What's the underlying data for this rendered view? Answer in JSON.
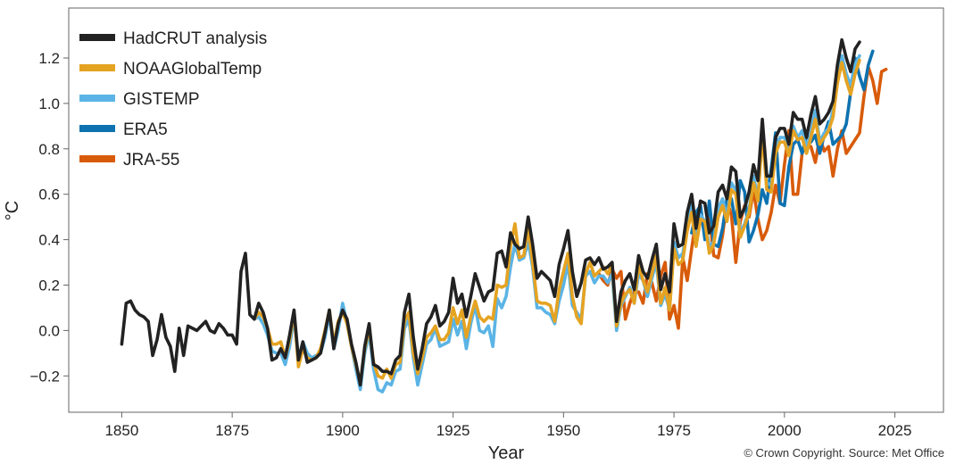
{
  "chart_data": {
    "type": "line",
    "xlabel": "Year",
    "ylabel": "°C",
    "xlim": [
      1838,
      2036
    ],
    "ylim": [
      -0.36,
      1.42
    ],
    "x_ticks": [
      1850,
      1875,
      1900,
      1925,
      1950,
      1975,
      2000,
      2025
    ],
    "y_ticks": [
      -0.2,
      0.0,
      0.2,
      0.4,
      0.6,
      0.8,
      1.0,
      1.2
    ],
    "y_tick_labels": [
      "−0.2",
      "0.0",
      "0.2",
      "0.4",
      "0.6",
      "0.8",
      "1.0",
      "1.2"
    ],
    "grid": false,
    "legend_position": "top-left",
    "credit": "© Crown Copyright. Source: Met Office",
    "draw_order": [
      4,
      3,
      2,
      1,
      0
    ],
    "series": [
      {
        "name": "HadCRUT analysis",
        "color": "#222222",
        "x_start": 1850,
        "values": [
          -0.06,
          0.12,
          0.13,
          0.09,
          0.07,
          0.06,
          0.04,
          -0.11,
          -0.04,
          0.07,
          -0.03,
          -0.07,
          -0.18,
          0.01,
          -0.11,
          0.02,
          0.01,
          0.0,
          0.02,
          0.04,
          0.0,
          -0.01,
          0.03,
          0.01,
          -0.02,
          -0.02,
          -0.06,
          0.26,
          0.34,
          0.07,
          0.05,
          0.12,
          0.08,
          0.01,
          -0.13,
          -0.12,
          -0.08,
          -0.12,
          -0.02,
          0.09,
          -0.13,
          -0.05,
          -0.14,
          -0.13,
          -0.12,
          -0.1,
          -0.01,
          0.09,
          -0.08,
          0.03,
          0.09,
          0.05,
          -0.06,
          -0.14,
          -0.24,
          -0.07,
          0.03,
          -0.15,
          -0.16,
          -0.18,
          -0.18,
          -0.19,
          -0.13,
          -0.11,
          0.08,
          0.16,
          -0.03,
          -0.17,
          -0.08,
          0.03,
          0.06,
          0.11,
          0.02,
          0.04,
          0.08,
          0.23,
          0.12,
          0.16,
          0.06,
          0.15,
          0.25,
          0.19,
          0.13,
          0.17,
          0.18,
          0.34,
          0.35,
          0.28,
          0.43,
          0.38,
          0.36,
          0.37,
          0.5,
          0.38,
          0.23,
          0.26,
          0.24,
          0.22,
          0.15,
          0.29,
          0.36,
          0.44,
          0.26,
          0.15,
          0.21,
          0.31,
          0.32,
          0.29,
          0.32,
          0.27,
          0.28,
          0.3,
          0.04,
          0.17,
          0.22,
          0.25,
          0.18,
          0.33,
          0.26,
          0.23,
          0.31,
          0.38,
          0.18,
          0.25,
          0.17,
          0.47,
          0.37,
          0.38,
          0.52,
          0.6,
          0.45,
          0.57,
          0.56,
          0.43,
          0.46,
          0.61,
          0.64,
          0.58,
          0.72,
          0.7,
          0.5,
          0.54,
          0.61,
          0.73,
          0.66,
          0.93,
          0.68,
          0.68,
          0.85,
          0.89,
          0.89,
          0.82,
          0.96,
          0.93,
          0.93,
          0.85,
          0.95,
          1.03,
          0.91,
          0.93,
          0.96,
          1.01,
          1.17,
          1.28,
          1.2,
          1.14,
          1.24,
          1.27
        ]
      },
      {
        "name": "NOAAGlobalTemp",
        "color": "#E5A322",
        "x_start": 1880,
        "values": [
          0.05,
          0.08,
          0.06,
          0.01,
          -0.06,
          -0.06,
          -0.05,
          -0.12,
          -0.04,
          0.08,
          -0.16,
          -0.08,
          -0.12,
          -0.13,
          -0.12,
          -0.08,
          0.0,
          0.09,
          -0.06,
          0.04,
          0.08,
          0.03,
          -0.07,
          -0.15,
          -0.23,
          -0.08,
          0.01,
          -0.14,
          -0.2,
          -0.21,
          -0.17,
          -0.21,
          -0.15,
          -0.14,
          0.04,
          0.08,
          -0.1,
          -0.19,
          -0.12,
          -0.03,
          -0.01,
          0.02,
          -0.04,
          -0.04,
          -0.01,
          0.1,
          0.03,
          0.09,
          -0.03,
          0.06,
          0.13,
          0.06,
          0.04,
          0.06,
          0.05,
          0.2,
          0.19,
          0.2,
          0.37,
          0.47,
          0.32,
          0.33,
          0.45,
          0.3,
          0.13,
          0.12,
          0.12,
          0.11,
          0.04,
          0.18,
          0.26,
          0.34,
          0.15,
          0.06,
          0.03,
          0.25,
          0.3,
          0.24,
          0.26,
          0.28,
          0.25,
          0.29,
          0.02,
          0.12,
          0.16,
          0.18,
          0.12,
          0.29,
          0.22,
          0.17,
          0.25,
          0.33,
          0.12,
          0.19,
          0.09,
          0.36,
          0.29,
          0.31,
          0.44,
          0.52,
          0.37,
          0.49,
          0.48,
          0.34,
          0.38,
          0.5,
          0.55,
          0.48,
          0.62,
          0.6,
          0.41,
          0.46,
          0.52,
          0.65,
          0.57,
          0.87,
          0.62,
          0.61,
          0.78,
          0.83,
          0.83,
          0.77,
          0.88,
          0.84,
          0.85,
          0.78,
          0.85,
          0.93,
          0.82,
          0.85,
          0.88,
          0.94,
          1.09,
          1.18,
          1.1,
          1.04,
          1.13,
          1.19
        ]
      },
      {
        "name": "GISTEMP",
        "color": "#5BB4E5",
        "x_start": 1880,
        "values": [
          0.05,
          0.06,
          0.03,
          -0.02,
          -0.09,
          -0.1,
          -0.1,
          -0.15,
          -0.07,
          0.06,
          -0.13,
          -0.05,
          -0.1,
          -0.12,
          -0.11,
          -0.1,
          -0.03,
          0.07,
          -0.08,
          0.0,
          0.12,
          0.03,
          -0.07,
          -0.17,
          -0.26,
          -0.1,
          -0.01,
          -0.17,
          -0.26,
          -0.27,
          -0.23,
          -0.24,
          -0.18,
          -0.17,
          0.01,
          0.05,
          -0.12,
          -0.24,
          -0.15,
          -0.06,
          -0.04,
          0.01,
          -0.07,
          -0.06,
          -0.05,
          0.05,
          -0.02,
          0.04,
          -0.08,
          0.03,
          0.11,
          0.0,
          -0.01,
          0.02,
          -0.07,
          0.14,
          0.1,
          0.15,
          0.28,
          0.38,
          0.31,
          0.32,
          0.39,
          0.28,
          0.1,
          0.1,
          0.08,
          0.07,
          0.03,
          0.13,
          0.2,
          0.3,
          0.11,
          0.08,
          0.05,
          0.24,
          0.26,
          0.21,
          0.24,
          0.24,
          0.21,
          0.25,
          0.0,
          0.11,
          0.15,
          0.19,
          0.12,
          0.25,
          0.22,
          0.15,
          0.23,
          0.3,
          0.11,
          0.16,
          0.09,
          0.39,
          0.32,
          0.34,
          0.45,
          0.56,
          0.4,
          0.51,
          0.48,
          0.37,
          0.39,
          0.54,
          0.58,
          0.5,
          0.65,
          0.62,
          0.43,
          0.47,
          0.53,
          0.68,
          0.58,
          0.88,
          0.65,
          0.64,
          0.8,
          0.85,
          0.85,
          0.79,
          0.9,
          0.85,
          0.88,
          0.8,
          0.87,
          0.97,
          0.83,
          0.87,
          0.89,
          0.97,
          1.11,
          1.21,
          1.13,
          1.08,
          1.17,
          1.21
        ]
      },
      {
        "name": "ERA5",
        "color": "#0E72B0",
        "x_start": 1979,
        "values": [
          0.43,
          0.52,
          0.55,
          0.4,
          0.57,
          0.38,
          0.37,
          0.45,
          0.58,
          0.58,
          0.47,
          0.66,
          0.61,
          0.39,
          0.44,
          0.51,
          0.62,
          0.56,
          0.71,
          0.87,
          0.56,
          0.55,
          0.72,
          0.82,
          0.84,
          0.78,
          0.86,
          0.83,
          0.86,
          0.78,
          0.86,
          0.92,
          0.82,
          0.84,
          0.86,
          0.91,
          1.05,
          1.2,
          1.12,
          1.06,
          1.17,
          1.23
        ]
      },
      {
        "name": "JRA-55",
        "color": "#D85B0A",
        "x_start": 1958,
        "values": [
          0.25,
          0.22,
          0.2,
          0.27,
          0.23,
          0.26,
          0.05,
          0.12,
          0.17,
          0.17,
          0.12,
          0.25,
          0.21,
          0.13,
          0.24,
          0.3,
          0.05,
          0.11,
          0.01,
          0.32,
          0.22,
          0.36,
          0.49,
          0.52,
          0.42,
          0.51,
          0.33,
          0.32,
          0.42,
          0.57,
          0.51,
          0.3,
          0.48,
          0.55,
          0.5,
          0.62,
          0.49,
          0.4,
          0.44,
          0.52,
          0.64,
          0.56,
          0.73,
          0.88,
          0.6,
          0.6,
          0.78,
          0.82,
          0.81,
          0.74,
          0.85,
          0.79,
          0.81,
          0.68,
          0.8,
          0.88,
          0.78,
          0.81,
          0.84,
          0.87,
          1.03,
          1.16,
          1.1,
          1.0,
          1.14,
          1.15
        ]
      }
    ]
  }
}
